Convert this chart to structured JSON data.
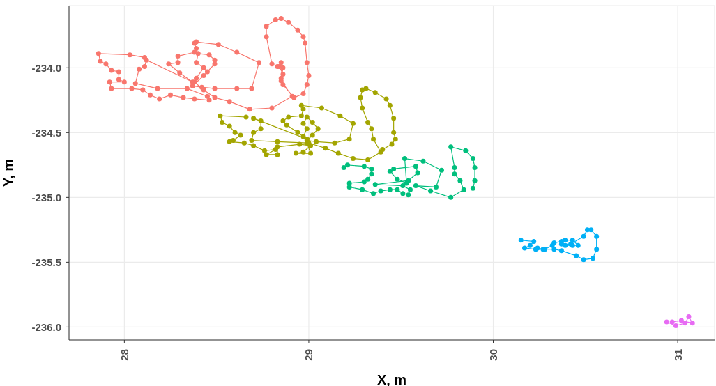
{
  "chart_data": {
    "type": "line",
    "xlabel": "X, m",
    "ylabel": "Y, m",
    "xlim": [
      27.7,
      31.2
    ],
    "ylim": [
      -236.1,
      -233.52
    ],
    "xticks": [
      28,
      29,
      30,
      31
    ],
    "yticks": [
      {
        "value": -236,
        "label": "-236.0"
      },
      {
        "value": -235.5,
        "label": "-235.5"
      },
      {
        "value": -235,
        "label": "-235.0"
      },
      {
        "value": -234.5,
        "label": "-234.5"
      },
      {
        "value": -234,
        "label": "-234.0"
      }
    ],
    "grid": true,
    "marker": "circle",
    "line_style": "solid",
    "series": [
      {
        "color": "#f8766d",
        "x": [
          28.11,
          28.03,
          27.86,
          27.87,
          27.9,
          27.93,
          27.97,
          27.97,
          28.0,
          27.92,
          27.93,
          28.04,
          28.1,
          28.14,
          28.19,
          28.25,
          28.32,
          28.38,
          28.46,
          28.45,
          28.34,
          28.18,
          28.06,
          28.08,
          28.11,
          28.12,
          28.37,
          28.3,
          28.24,
          28.29,
          28.29,
          28.38,
          28.39,
          28.38,
          28.39,
          28.51,
          28.61,
          28.73,
          28.69,
          28.61,
          28.49,
          28.42,
          28.37,
          28.43,
          28.45,
          28.49,
          28.49,
          28.46,
          28.4,
          28.39,
          28.43,
          28.39,
          28.38,
          28.43,
          28.49,
          28.57,
          28.68,
          28.8,
          28.91,
          28.85,
          28.86,
          28.83,
          28.8,
          28.77,
          28.77,
          28.82,
          28.85,
          28.89,
          28.94,
          28.97,
          28.98,
          28.99,
          29.0,
          28.99,
          28.97,
          28.92,
          28.86,
          28.85,
          28.86,
          28.84,
          28.85
        ],
        "values": [
          -233.92,
          -233.9,
          -233.89,
          -233.95,
          -233.97,
          -234.02,
          -234.03,
          -234.09,
          -234.11,
          -234.11,
          -234.16,
          -234.16,
          -234.17,
          -234.21,
          -234.24,
          -234.21,
          -234.23,
          -234.24,
          -234.25,
          -234.22,
          -234.16,
          -234.16,
          -234.12,
          -234.01,
          -233.99,
          -233.94,
          -234.11,
          -234.04,
          -233.97,
          -233.96,
          -233.91,
          -233.88,
          -233.85,
          -233.81,
          -233.8,
          -233.82,
          -233.88,
          -233.96,
          -234.16,
          -234.16,
          -234.16,
          -234.15,
          -234.14,
          -234.06,
          -234.03,
          -233.97,
          -233.94,
          -233.9,
          -233.89,
          -233.96,
          -234.0,
          -234.08,
          -234.11,
          -234.17,
          -234.23,
          -234.26,
          -234.32,
          -234.31,
          -234.22,
          -234.1,
          -234.0,
          -233.99,
          -233.97,
          -233.76,
          -233.68,
          -233.63,
          -233.62,
          -233.65,
          -233.71,
          -233.76,
          -233.81,
          -233.96,
          -234.06,
          -234.13,
          -234.2,
          -234.23,
          -234.13,
          -234.08,
          -234.05,
          -233.99,
          -233.96
        ]
      },
      {
        "color": "#a3a500",
        "x": [
          28.66,
          28.52,
          28.53,
          28.57,
          28.6,
          28.63,
          28.59,
          28.57,
          28.65,
          28.7,
          28.76,
          28.82,
          28.77,
          28.83,
          28.83,
          28.95,
          29.01,
          28.97,
          28.93,
          29.01,
          28.99,
          28.83,
          28.69,
          28.7,
          28.74,
          28.74,
          28.7,
          28.99,
          28.94,
          28.88,
          28.86,
          28.89,
          28.96,
          28.97,
          28.96,
          29.07,
          29.17,
          29.24,
          29.22,
          29.14,
          29.04,
          28.99,
          29.02,
          29.05,
          29.02,
          28.99,
          28.97,
          28.99,
          28.97,
          29.0,
          29.09,
          29.16,
          29.24,
          29.32,
          29.39,
          29.35,
          29.34,
          29.32,
          29.29,
          29.28,
          29.29,
          29.31,
          29.36,
          29.42,
          29.44,
          29.46,
          29.46,
          29.47,
          29.45,
          29.4
        ],
        "values": [
          -234.38,
          -234.37,
          -234.42,
          -234.45,
          -234.5,
          -234.52,
          -234.56,
          -234.57,
          -234.58,
          -234.6,
          -234.64,
          -234.63,
          -234.67,
          -234.67,
          -234.61,
          -234.59,
          -234.6,
          -234.65,
          -234.66,
          -234.66,
          -234.58,
          -234.57,
          -234.56,
          -234.5,
          -234.47,
          -234.41,
          -234.39,
          -234.55,
          -234.5,
          -234.44,
          -234.41,
          -234.38,
          -234.37,
          -234.32,
          -234.29,
          -234.31,
          -234.37,
          -234.43,
          -234.55,
          -234.58,
          -234.57,
          -234.56,
          -234.52,
          -234.47,
          -234.42,
          -234.38,
          -234.43,
          -234.47,
          -234.53,
          -234.58,
          -234.62,
          -234.66,
          -234.7,
          -234.71,
          -234.65,
          -234.55,
          -234.47,
          -234.42,
          -234.31,
          -234.23,
          -234.17,
          -234.16,
          -234.19,
          -234.24,
          -234.29,
          -234.39,
          -234.5,
          -234.55,
          -234.59,
          -234.63
        ]
      },
      {
        "color": "#00bf7d",
        "x": [
          29.19,
          29.21,
          29.3,
          29.34,
          29.34,
          29.32,
          29.3,
          29.22,
          29.22,
          29.29,
          29.35,
          29.39,
          29.44,
          29.48,
          29.51,
          29.54,
          29.55,
          29.51,
          29.36,
          29.54,
          29.59,
          29.58,
          29.46,
          29.44,
          29.48,
          29.53,
          29.52,
          29.62,
          29.72,
          29.69,
          29.58,
          29.66,
          29.77,
          29.84,
          29.82,
          29.79,
          29.79,
          29.77,
          29.85,
          29.89,
          29.9,
          29.9,
          29.89
        ],
        "values": [
          -234.77,
          -234.75,
          -234.76,
          -234.78,
          -234.82,
          -234.86,
          -234.88,
          -234.89,
          -234.92,
          -234.94,
          -234.97,
          -234.95,
          -234.94,
          -234.94,
          -234.97,
          -234.98,
          -234.94,
          -234.91,
          -234.9,
          -234.87,
          -234.81,
          -234.76,
          -234.78,
          -234.8,
          -234.86,
          -234.89,
          -234.7,
          -234.72,
          -234.79,
          -234.92,
          -234.91,
          -234.95,
          -235.0,
          -234.94,
          -234.87,
          -234.82,
          -234.77,
          -234.61,
          -234.64,
          -234.7,
          -234.77,
          -234.87,
          -234.93
        ]
      },
      {
        "color": "#00b0f6",
        "x": [
          30.15,
          30.22,
          30.2,
          30.17,
          30.23,
          30.28,
          30.32,
          30.33,
          30.37,
          30.39,
          30.43,
          30.46,
          30.43,
          30.39,
          30.37,
          30.42,
          30.49,
          30.51,
          30.53,
          30.56,
          30.56,
          30.54,
          30.49,
          30.45,
          30.37,
          30.33,
          30.27,
          30.24
        ],
        "values": [
          -235.33,
          -235.34,
          -235.37,
          -235.39,
          -235.4,
          -235.4,
          -235.37,
          -235.35,
          -235.34,
          -235.37,
          -235.37,
          -235.37,
          -235.33,
          -235.33,
          -235.36,
          -235.36,
          -235.3,
          -235.25,
          -235.25,
          -235.3,
          -235.4,
          -235.47,
          -235.48,
          -235.45,
          -235.41,
          -235.4,
          -235.4,
          -235.39
        ]
      },
      {
        "color": "#e76bf3",
        "x": [
          30.94,
          30.99,
          31.04,
          31.06,
          31.08,
          31.02,
          30.97
        ],
        "values": [
          -235.96,
          -235.99,
          -235.97,
          -235.92,
          -235.97,
          -235.95,
          -235.96
        ]
      }
    ]
  }
}
